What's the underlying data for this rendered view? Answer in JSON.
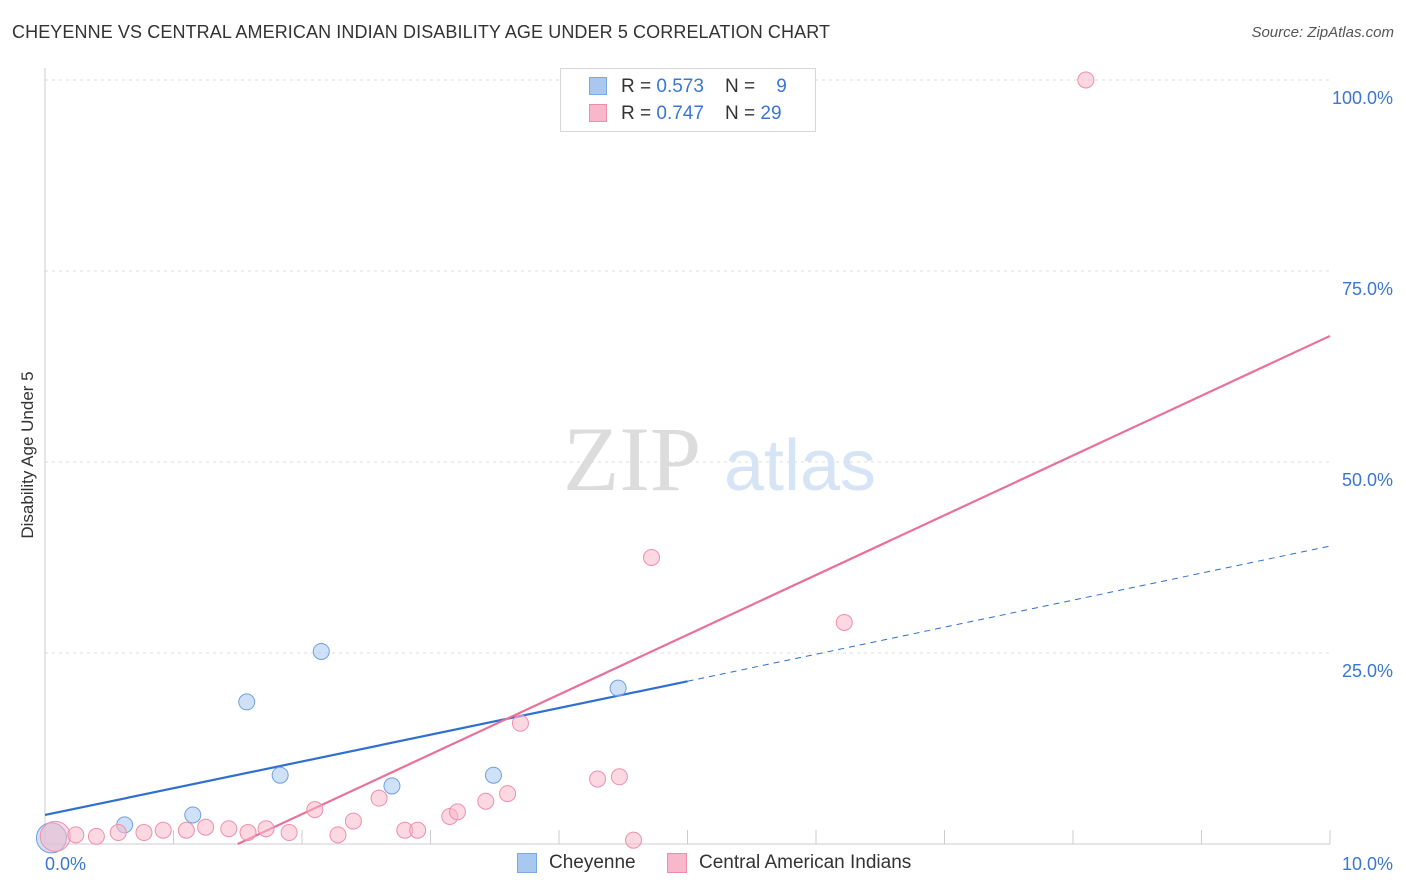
{
  "header": {
    "title": "CHEYENNE VS CENTRAL AMERICAN INDIAN DISABILITY AGE UNDER 5 CORRELATION CHART",
    "source": "Source: ZipAtlas.com"
  },
  "watermark": {
    "zip": "ZIP",
    "atlas": "atlas"
  },
  "legend": {
    "rows": [
      {
        "r_label": "R = ",
        "r_value": "0.573",
        "n_label": "N = ",
        "n_value": "9",
        "color": "#a8c8f0"
      },
      {
        "r_label": "R = ",
        "r_value": "0.747",
        "n_label": "N = ",
        "n_value": "29",
        "color": "#f7b8cb"
      }
    ]
  },
  "bottom_legend": {
    "items": [
      {
        "label": "Cheyenne",
        "color": "#a8c8f0"
      },
      {
        "label": "Central American Indians",
        "color": "#f7b8cb"
      }
    ]
  },
  "chart_data": {
    "type": "scatter",
    "title": "CHEYENNE VS CENTRAL AMERICAN INDIAN DISABILITY AGE UNDER 5 CORRELATION CHART",
    "xlabel": "",
    "ylabel": "Disability Age Under 5",
    "xlim": [
      0,
      10
    ],
    "ylim": [
      0,
      100
    ],
    "x_ticks": [
      "0.0%",
      "10.0%"
    ],
    "y_ticks": [
      "25.0%",
      "50.0%",
      "75.0%",
      "100.0%"
    ],
    "grid": true,
    "legend_position": "top-center",
    "series": [
      {
        "name": "Cheyenne",
        "color": "#6f9fe0",
        "points": [
          {
            "x": 0.05,
            "y": 0.8
          },
          {
            "x": 0.62,
            "y": 2.5
          },
          {
            "x": 1.15,
            "y": 3.8
          },
          {
            "x": 1.57,
            "y": 18.6
          },
          {
            "x": 1.83,
            "y": 9.0
          },
          {
            "x": 2.15,
            "y": 25.2
          },
          {
            "x": 2.7,
            "y": 7.6
          },
          {
            "x": 3.49,
            "y": 9.0
          },
          {
            "x": 4.46,
            "y": 20.4
          }
        ],
        "trend": {
          "x0": 0,
          "y0": 3.8,
          "x1": 5.0,
          "y1": 21.3,
          "dashed_to_x": 10.0,
          "dashed_to_y": 39.0,
          "color": "#2f6fd0"
        }
      },
      {
        "name": "Central American Indians",
        "color": "#f08cab",
        "points": [
          {
            "x": 0.08,
            "y": 1.0
          },
          {
            "x": 0.24,
            "y": 1.2
          },
          {
            "x": 0.4,
            "y": 1.0
          },
          {
            "x": 0.57,
            "y": 1.5
          },
          {
            "x": 0.77,
            "y": 1.5
          },
          {
            "x": 0.92,
            "y": 1.8
          },
          {
            "x": 1.1,
            "y": 1.8
          },
          {
            "x": 1.25,
            "y": 2.2
          },
          {
            "x": 1.43,
            "y": 2.0
          },
          {
            "x": 1.58,
            "y": 1.5
          },
          {
            "x": 1.72,
            "y": 2.0
          },
          {
            "x": 1.9,
            "y": 1.5
          },
          {
            "x": 2.1,
            "y": 4.5
          },
          {
            "x": 2.28,
            "y": 1.2
          },
          {
            "x": 2.4,
            "y": 3.0
          },
          {
            "x": 2.6,
            "y": 6.0
          },
          {
            "x": 2.8,
            "y": 1.8
          },
          {
            "x": 2.9,
            "y": 1.8
          },
          {
            "x": 3.15,
            "y": 3.6
          },
          {
            "x": 3.21,
            "y": 4.2
          },
          {
            "x": 3.43,
            "y": 5.6
          },
          {
            "x": 3.6,
            "y": 6.6
          },
          {
            "x": 3.7,
            "y": 15.8
          },
          {
            "x": 4.3,
            "y": 8.5
          },
          {
            "x": 4.47,
            "y": 8.8
          },
          {
            "x": 4.58,
            "y": 0.5
          },
          {
            "x": 4.72,
            "y": 37.5
          },
          {
            "x": 6.22,
            "y": 29.0
          },
          {
            "x": 8.1,
            "y": 100.0
          }
        ],
        "trend": {
          "x0": 1.5,
          "y0": 0.0,
          "x1": 10.0,
          "y1": 66.5,
          "color": "#e87099"
        }
      }
    ]
  }
}
